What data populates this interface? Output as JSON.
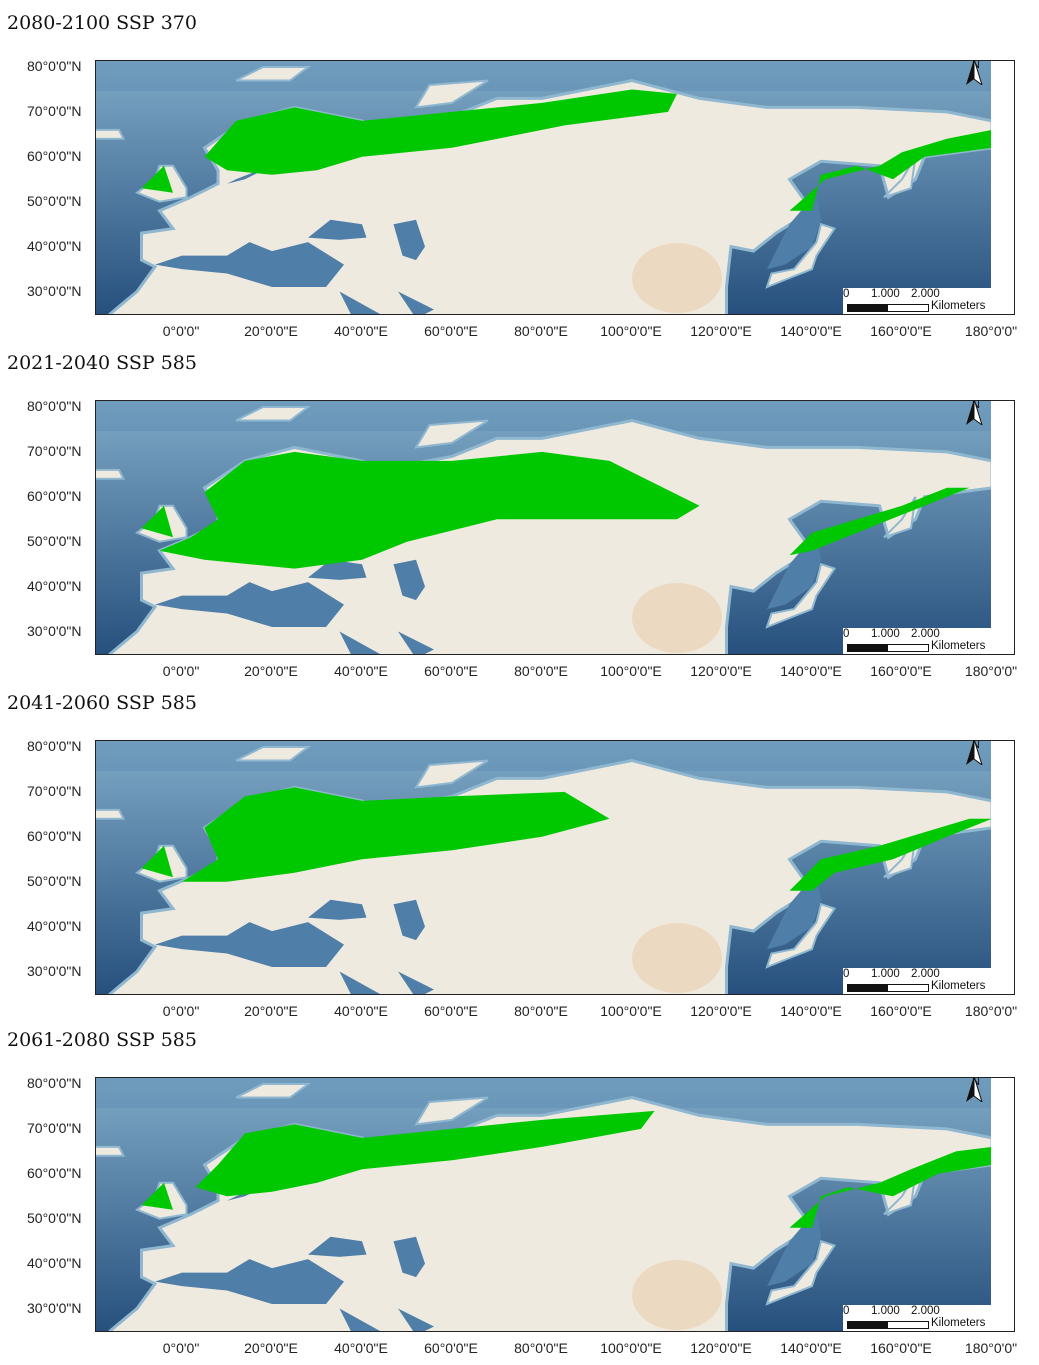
{
  "colors": {
    "ocean_deep": "#27507e",
    "ocean_shelf": "#8fb7cf",
    "land": "#efeadf",
    "suitable": "#00c800"
  },
  "lat_labels": [
    "80°0'0\"N",
    "70°0'0\"N",
    "60°0'0\"N",
    "50°0'0\"N",
    "40°0'0\"N",
    "30°0'0\"N"
  ],
  "lon_labels": [
    "0°0'0\"",
    "20°0'0\"E",
    "40°0'0\"E",
    "60°0'0\"E",
    "80°0'0\"E",
    "100°0'0\"E",
    "120°0'0\"E",
    "140°0'0\"E",
    "160°0'0\"E",
    "180°0'0\""
  ],
  "scale": {
    "t0": "0",
    "t1": "1.000",
    "t2": "2.000",
    "unit": "Kilometers"
  },
  "north": "N",
  "panels": [
    {
      "title": "2080-2100 SSP 370",
      "suitable_lonlat": [
        [
          [
            5,
            60
          ],
          [
            12,
            68
          ],
          [
            25,
            71
          ],
          [
            40,
            68
          ],
          [
            60,
            70
          ],
          [
            80,
            72
          ],
          [
            100,
            75
          ],
          [
            110,
            74
          ],
          [
            108,
            70
          ],
          [
            85,
            67
          ],
          [
            60,
            62
          ],
          [
            40,
            60
          ],
          [
            30,
            57
          ],
          [
            20,
            56
          ],
          [
            10,
            57
          ]
        ],
        [
          [
            -9,
            53
          ],
          [
            -4,
            58
          ],
          [
            -2,
            52
          ]
        ],
        [
          [
            135,
            48
          ],
          [
            143,
            55
          ],
          [
            155,
            58
          ],
          [
            160,
            61
          ],
          [
            170,
            64
          ],
          [
            180,
            66
          ],
          [
            180,
            62
          ],
          [
            165,
            60
          ],
          [
            158,
            55
          ],
          [
            150,
            58
          ],
          [
            142,
            56
          ],
          [
            140,
            48
          ]
        ]
      ]
    },
    {
      "title": "2021-2040 SSP 585",
      "suitable_lonlat": [
        [
          [
            -5,
            48
          ],
          [
            2,
            51
          ],
          [
            8,
            55
          ],
          [
            5,
            61
          ],
          [
            14,
            68
          ],
          [
            25,
            70
          ],
          [
            40,
            68
          ],
          [
            60,
            68
          ],
          [
            80,
            70
          ],
          [
            95,
            68
          ],
          [
            115,
            58
          ],
          [
            110,
            55
          ],
          [
            90,
            55
          ],
          [
            70,
            55
          ],
          [
            50,
            50
          ],
          [
            40,
            46
          ],
          [
            25,
            44
          ],
          [
            15,
            45
          ],
          [
            5,
            46
          ]
        ],
        [
          [
            -9,
            53
          ],
          [
            -4,
            58
          ],
          [
            -2,
            51
          ]
        ],
        [
          [
            135,
            47
          ],
          [
            140,
            52
          ],
          [
            150,
            55
          ],
          [
            160,
            58
          ],
          [
            170,
            62
          ],
          [
            175,
            62
          ],
          [
            165,
            58
          ],
          [
            155,
            54
          ],
          [
            140,
            48
          ]
        ]
      ]
    },
    {
      "title": "2041-2060 SSP 585",
      "suitable_lonlat": [
        [
          [
            0,
            50
          ],
          [
            8,
            55
          ],
          [
            5,
            62
          ],
          [
            14,
            69
          ],
          [
            25,
            71
          ],
          [
            40,
            68
          ],
          [
            60,
            69
          ],
          [
            85,
            70
          ],
          [
            95,
            64
          ],
          [
            80,
            60
          ],
          [
            60,
            57
          ],
          [
            40,
            55
          ],
          [
            25,
            52
          ],
          [
            10,
            50
          ]
        ],
        [
          [
            -9,
            53
          ],
          [
            -4,
            58
          ],
          [
            -2,
            51
          ]
        ],
        [
          [
            135,
            48
          ],
          [
            142,
            55
          ],
          [
            155,
            58
          ],
          [
            165,
            61
          ],
          [
            175,
            64
          ],
          [
            180,
            64
          ],
          [
            170,
            60
          ],
          [
            158,
            55
          ],
          [
            145,
            52
          ],
          [
            140,
            48
          ]
        ]
      ]
    },
    {
      "title": "2061-2080 SSP 585",
      "suitable_lonlat": [
        [
          [
            3,
            57
          ],
          [
            8,
            62
          ],
          [
            14,
            69
          ],
          [
            25,
            71
          ],
          [
            40,
            68
          ],
          [
            60,
            70
          ],
          [
            80,
            72
          ],
          [
            105,
            74
          ],
          [
            102,
            70
          ],
          [
            80,
            66
          ],
          [
            60,
            63
          ],
          [
            40,
            61
          ],
          [
            30,
            58
          ],
          [
            20,
            56
          ],
          [
            10,
            55
          ]
        ],
        [
          [
            -9,
            53
          ],
          [
            -4,
            58
          ],
          [
            -2,
            52
          ]
        ],
        [
          [
            135,
            48
          ],
          [
            143,
            55
          ],
          [
            155,
            58
          ],
          [
            162,
            61
          ],
          [
            172,
            65
          ],
          [
            180,
            66
          ],
          [
            180,
            62
          ],
          [
            168,
            60
          ],
          [
            158,
            55
          ],
          [
            148,
            57
          ],
          [
            142,
            55
          ],
          [
            140,
            48
          ]
        ]
      ]
    }
  ]
}
